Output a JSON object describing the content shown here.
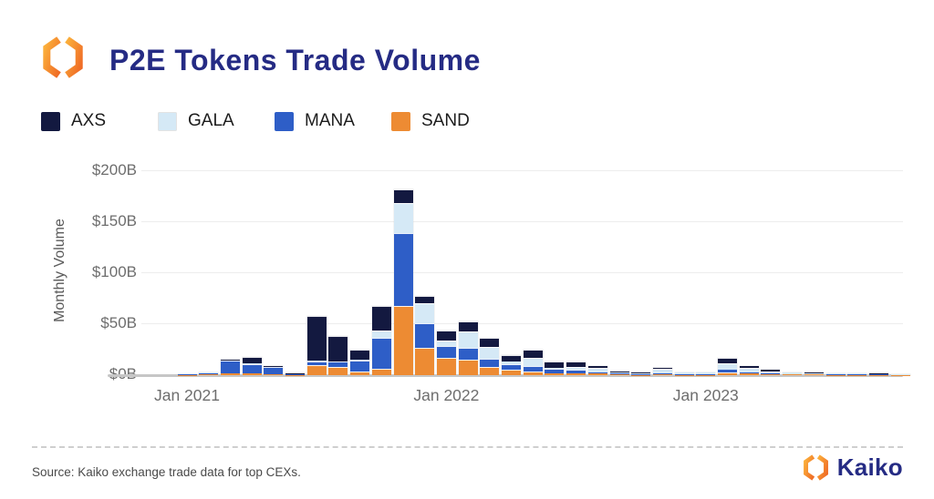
{
  "header": {
    "title": "P2E Tokens Trade Volume"
  },
  "legend": {
    "items": [
      {
        "label": "AXS",
        "color": "#131940"
      },
      {
        "label": "GALA",
        "color": "#D5E9F6"
      },
      {
        "label": "MANA",
        "color": "#2E5EC7"
      },
      {
        "label": "SAND",
        "color": "#ED8B33"
      }
    ]
  },
  "icons": {
    "header_logo": "kaiko-hexagon-logo",
    "brand_logo": "kaiko-hexagon-logo"
  },
  "chart_data": {
    "type": "bar",
    "stacked": true,
    "title": "P2E Tokens Trade Volume",
    "xlabel": "",
    "ylabel": "Monthly Volume",
    "ylim": [
      0,
      205
    ],
    "grid": true,
    "legend_position": "top",
    "unit": "$B",
    "months": [
      "Jan 2021",
      "Feb 2021",
      "Mar 2021",
      "Apr 2021",
      "May 2021",
      "Jun 2021",
      "Jul 2021",
      "Aug 2021",
      "Sep 2021",
      "Oct 2021",
      "Nov 2021",
      "Dec 2021",
      "Jan 2022",
      "Feb 2022",
      "Mar 2022",
      "Apr 2022",
      "May 2022",
      "Jun 2022",
      "Jul 2022",
      "Aug 2022",
      "Sep 2022",
      "Oct 2022",
      "Nov 2022",
      "Dec 2022",
      "Jan 2023",
      "Feb 2023",
      "Mar 2023",
      "Apr 2023",
      "May 2023",
      "Jun 2023",
      "Jul 2023",
      "Aug 2023",
      "Sep 2023",
      "Oct 2023"
    ],
    "yticks": [
      {
        "label": "$0B",
        "value": 0
      },
      {
        "label": "$50B",
        "value": 50
      },
      {
        "label": "$100B",
        "value": 100
      },
      {
        "label": "$150B",
        "value": 150
      },
      {
        "label": "$200B",
        "value": 200
      }
    ],
    "xticks": [
      {
        "index": 0,
        "label": "Jan 2021"
      },
      {
        "index": 12,
        "label": "Jan 2022"
      },
      {
        "index": 24,
        "label": "Jan 2023"
      }
    ],
    "series": [
      {
        "name": "SAND",
        "color": "#ED8B33",
        "values": [
          0.2,
          1.0,
          2,
          2,
          1,
          0.3,
          10,
          8,
          3.5,
          6,
          68,
          27,
          17,
          15,
          8,
          5,
          4,
          2,
          2,
          1.5,
          0.7,
          0.4,
          1,
          0.4,
          0.3,
          3,
          2,
          0.7,
          0.5,
          0.5,
          0.3,
          0.3,
          0.2,
          0.2
        ]
      },
      {
        "name": "MANA",
        "color": "#2E5EC7",
        "values": [
          0.3,
          1.0,
          12,
          9,
          7,
          0.7,
          3.5,
          5,
          11,
          31,
          71,
          24,
          12,
          12,
          8,
          6,
          5,
          4,
          3,
          1.5,
          0.8,
          0.6,
          1,
          0.6,
          0.5,
          2,
          1,
          0.8,
          0.5,
          0.4,
          0.4,
          0.3,
          0.3,
          0.2
        ]
      },
      {
        "name": "GALA",
        "color": "#D5E9F6",
        "values": [
          0.1,
          0.5,
          0.5,
          0.5,
          0.5,
          0.2,
          0.5,
          0.5,
          0.5,
          7,
          30,
          20,
          5,
          16,
          12,
          2,
          8,
          1,
          3,
          4,
          1.5,
          1.2,
          4,
          1.3,
          1.5,
          7,
          4,
          2.5,
          1.5,
          1.2,
          1.0,
          0.8,
          0.7,
          0.6
        ]
      },
      {
        "name": "AXS",
        "color": "#131940",
        "values": [
          0.1,
          0.2,
          0.5,
          6,
          0.5,
          0.8,
          44,
          25,
          10,
          24,
          13,
          7,
          10,
          10,
          9,
          7,
          8,
          6,
          5,
          2,
          1,
          0.8,
          1,
          0.7,
          0.7,
          5,
          2,
          1,
          0.5,
          0.4,
          0.3,
          0.3,
          0.3,
          0.2
        ]
      }
    ]
  },
  "footer": {
    "source": "Source: Kaiko exchange trade data for top CEXs.",
    "brand": "Kaiko"
  }
}
